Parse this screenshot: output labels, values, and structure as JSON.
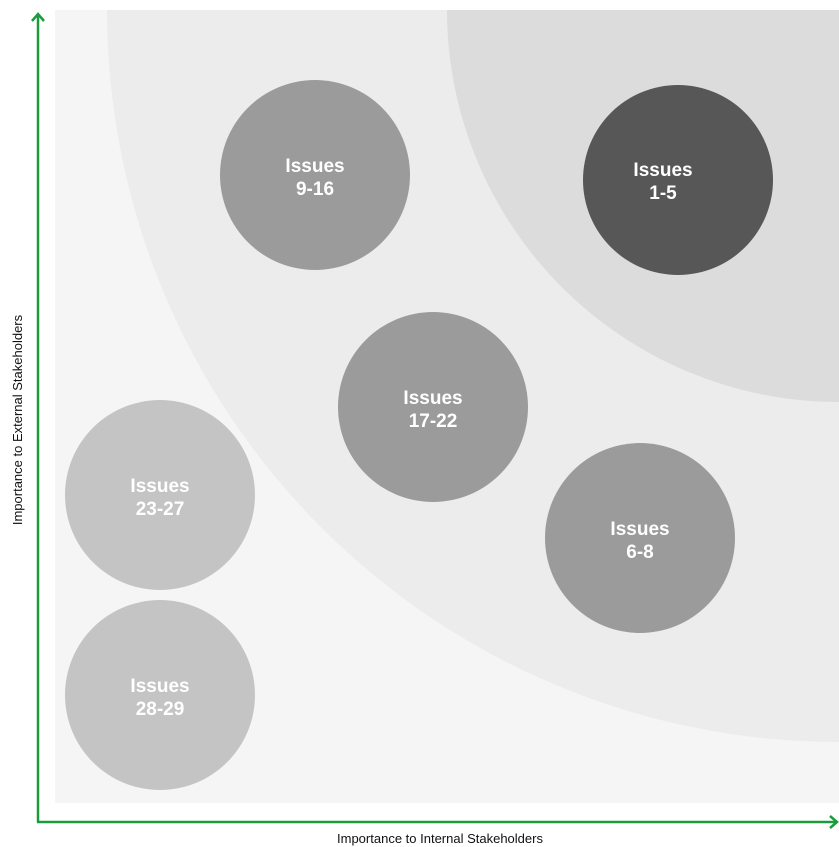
{
  "axes": {
    "x_label": "Importance to Internal Stakeholders",
    "y_label": "Importance to External Stakeholders"
  },
  "bubbles": [
    {
      "line1": "Issues",
      "line2": "9-16"
    },
    {
      "line1": "Issues",
      "line2": "1-5"
    },
    {
      "line1": "Issues",
      "line2": "17-22"
    },
    {
      "line1": "Issues",
      "line2": "23-27"
    },
    {
      "line1": "Issues",
      "line2": "6-8"
    },
    {
      "line1": "Issues",
      "line2": "28-29"
    }
  ]
}
